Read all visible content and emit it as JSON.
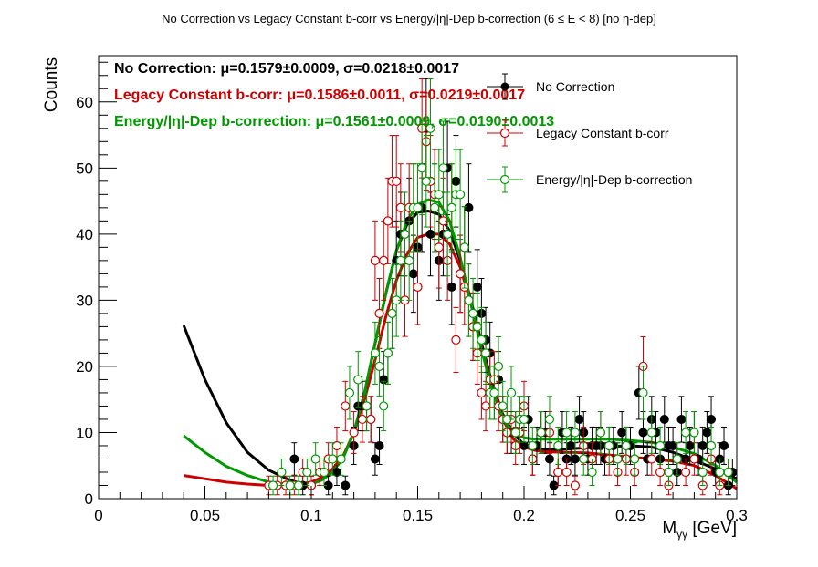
{
  "chart_data": {
    "type": "scatter",
    "title": "No Correction vs Legacy Constant b-corr vs Energy/|η|-Dep b-correction   (6 ≤ E < 8)   [no η-dep]",
    "xlabel": "M",
    "xlabel_sub": "γγ",
    "xlabel_unit": " [GeV]",
    "ylabel": "Counts",
    "xlim": [
      0,
      0.3
    ],
    "ylim": [
      0,
      67
    ],
    "xticks": [
      0,
      0.05,
      0.1,
      0.15,
      0.2,
      0.25,
      0.3
    ],
    "xtick_labels": [
      "0",
      "0.05",
      "0.1",
      "0.15",
      "0.2",
      "0.25",
      "0.3"
    ],
    "yticks": [
      0,
      10,
      20,
      30,
      40,
      50,
      60
    ],
    "ytick_labels": [
      "0",
      "10",
      "20",
      "30",
      "40",
      "50",
      "60"
    ],
    "grid": false,
    "legend_position": "top-right",
    "stats": [
      {
        "label": "No Correction:",
        "value": "μ=0.1579±0.0009, σ=0.0218±0.0017",
        "color": "#000000"
      },
      {
        "label": "Legacy Constant b-corr:",
        "value": "μ=0.1586±0.0011, σ=0.0219±0.0017",
        "color": "#cc0000"
      },
      {
        "label": "Energy/|η|-Dep b-correction:",
        "value": "μ=0.1561±0.0009, σ=0.0190±0.0013",
        "color": "#009900"
      }
    ],
    "series": [
      {
        "name": "No Correction",
        "color": "#000000",
        "marker": "filled-circle",
        "x": [
          0.092,
          0.096,
          0.1,
          0.104,
          0.108,
          0.112,
          0.116,
          0.12,
          0.122,
          0.124,
          0.126,
          0.128,
          0.13,
          0.132,
          0.134,
          0.136,
          0.138,
          0.14,
          0.142,
          0.144,
          0.146,
          0.148,
          0.15,
          0.152,
          0.154,
          0.156,
          0.158,
          0.16,
          0.162,
          0.164,
          0.166,
          0.168,
          0.17,
          0.172,
          0.174,
          0.176,
          0.178,
          0.18,
          0.182,
          0.184,
          0.186,
          0.188,
          0.19,
          0.192,
          0.194,
          0.196,
          0.198,
          0.2,
          0.202,
          0.204,
          0.206,
          0.208,
          0.21,
          0.212,
          0.214,
          0.216,
          0.218,
          0.22,
          0.222,
          0.224,
          0.226,
          0.228,
          0.23,
          0.232,
          0.234,
          0.236,
          0.238,
          0.24,
          0.242,
          0.244,
          0.246,
          0.248,
          0.25,
          0.252,
          0.254,
          0.256,
          0.258,
          0.26,
          0.262,
          0.264,
          0.266,
          0.268,
          0.27,
          0.272,
          0.274,
          0.276,
          0.278,
          0.28,
          0.282,
          0.284,
          0.286,
          0.288,
          0.29,
          0.292,
          0.294,
          0.296,
          0.298
        ],
        "y": [
          6,
          2,
          2,
          4,
          2,
          4,
          2,
          8,
          14,
          14,
          14,
          12,
          6,
          8,
          18,
          22,
          28,
          36,
          40,
          40,
          42,
          34,
          38,
          44,
          56,
          40,
          44,
          36,
          40,
          50,
          32,
          48,
          34,
          38,
          44,
          26,
          32,
          28,
          24,
          22,
          16,
          18,
          12,
          10,
          10,
          10,
          12,
          8,
          12,
          6,
          8,
          10,
          10,
          6,
          2,
          4,
          10,
          6,
          8,
          6,
          12,
          10,
          6,
          8,
          8,
          8,
          6,
          8,
          8,
          6,
          10,
          8,
          8,
          6,
          16,
          10,
          6,
          12,
          10,
          6,
          12,
          8,
          8,
          4,
          12,
          6,
          8,
          10,
          6,
          8,
          10,
          12,
          4,
          6,
          8,
          2,
          4
        ],
        "fit_mu": 0.1579,
        "fit_sigma": 0.0218
      },
      {
        "name": "Legacy Constant b-corr",
        "color": "#cc0000",
        "marker": "open-circle",
        "x": [
          0.08,
          0.084,
          0.088,
          0.092,
          0.096,
          0.1,
          0.104,
          0.108,
          0.112,
          0.116,
          0.12,
          0.124,
          0.128,
          0.13,
          0.132,
          0.134,
          0.136,
          0.138,
          0.14,
          0.142,
          0.144,
          0.146,
          0.148,
          0.15,
          0.152,
          0.154,
          0.156,
          0.158,
          0.16,
          0.162,
          0.164,
          0.166,
          0.168,
          0.17,
          0.172,
          0.174,
          0.176,
          0.178,
          0.18,
          0.182,
          0.184,
          0.186,
          0.188,
          0.19,
          0.192,
          0.194,
          0.196,
          0.198,
          0.2,
          0.204,
          0.208,
          0.212,
          0.216,
          0.22,
          0.224,
          0.228,
          0.232,
          0.236,
          0.24,
          0.244,
          0.248,
          0.252,
          0.256,
          0.26,
          0.264,
          0.268,
          0.272,
          0.276,
          0.28,
          0.284,
          0.288,
          0.292,
          0.296
        ],
        "y": [
          2,
          2,
          2,
          2,
          4,
          2,
          4,
          6,
          8,
          14,
          10,
          12,
          12,
          36,
          28,
          36,
          42,
          48,
          48,
          44,
          30,
          44,
          44,
          32,
          56,
          54,
          48,
          46,
          38,
          42,
          36,
          44,
          24,
          34,
          32,
          30,
          26,
          22,
          16,
          14,
          18,
          18,
          14,
          12,
          10,
          12,
          8,
          10,
          14,
          6,
          10,
          10,
          4,
          4,
          2,
          8,
          6,
          10,
          6,
          4,
          6,
          4,
          20,
          6,
          4,
          2,
          6,
          4,
          6,
          2,
          6,
          2,
          4
        ],
        "fit_mu": 0.1586,
        "fit_sigma": 0.0219
      },
      {
        "name": "Energy/|η|-Dep b-correction",
        "color": "#009900",
        "marker": "open-circle",
        "x": [
          0.082,
          0.086,
          0.09,
          0.094,
          0.098,
          0.102,
          0.106,
          0.11,
          0.114,
          0.118,
          0.122,
          0.126,
          0.13,
          0.132,
          0.134,
          0.136,
          0.138,
          0.14,
          0.142,
          0.144,
          0.146,
          0.148,
          0.15,
          0.152,
          0.154,
          0.156,
          0.158,
          0.16,
          0.162,
          0.164,
          0.166,
          0.168,
          0.17,
          0.172,
          0.174,
          0.176,
          0.178,
          0.18,
          0.182,
          0.184,
          0.186,
          0.188,
          0.19,
          0.192,
          0.194,
          0.196,
          0.198,
          0.2,
          0.204,
          0.208,
          0.212,
          0.216,
          0.22,
          0.224,
          0.228,
          0.232,
          0.236,
          0.24,
          0.244,
          0.248,
          0.252,
          0.256,
          0.26,
          0.264,
          0.268,
          0.272,
          0.276,
          0.28,
          0.284,
          0.288,
          0.292,
          0.296
        ],
        "y": [
          2,
          4,
          2,
          2,
          4,
          6,
          4,
          6,
          6,
          16,
          18,
          14,
          22,
          20,
          14,
          22,
          28,
          30,
          36,
          40,
          36,
          44,
          44,
          50,
          48,
          56,
          44,
          46,
          50,
          40,
          44,
          46,
          46,
          38,
          30,
          28,
          26,
          24,
          22,
          16,
          16,
          20,
          14,
          12,
          16,
          10,
          12,
          12,
          8,
          10,
          12,
          8,
          10,
          10,
          6,
          4,
          10,
          8,
          6,
          8,
          6,
          16,
          10,
          8,
          4,
          6,
          10,
          10,
          4,
          8,
          4,
          4
        ],
        "fit_mu": 0.1561,
        "fit_sigma": 0.019
      }
    ],
    "fit_curves": [
      {
        "series": "No Correction",
        "color": "#000000",
        "x": [
          0.04,
          0.05,
          0.06,
          0.07,
          0.08,
          0.09,
          0.095,
          0.1,
          0.105,
          0.11,
          0.115,
          0.12,
          0.125,
          0.13,
          0.135,
          0.14,
          0.145,
          0.15,
          0.155,
          0.16,
          0.165,
          0.17,
          0.175,
          0.18,
          0.185,
          0.19,
          0.195,
          0.2,
          0.205,
          0.21,
          0.215,
          0.22,
          0.23,
          0.24,
          0.25,
          0.26,
          0.27,
          0.28,
          0.29,
          0.3
        ],
        "y": [
          26.2,
          18.0,
          11.5,
          7.0,
          4.3,
          2.8,
          2.3,
          2.4,
          3.2,
          4.4,
          6.3,
          10.0,
          16.0,
          23.5,
          31.0,
          37.5,
          41.5,
          43.3,
          43.5,
          43.0,
          40.5,
          36.0,
          30.0,
          23.5,
          17.5,
          12.8,
          9.8,
          8.2,
          7.6,
          7.4,
          7.4,
          7.5,
          7.7,
          7.9,
          8.0,
          7.8,
          7.0,
          5.8,
          4.5,
          3.0
        ]
      },
      {
        "series": "Legacy Constant b-corr",
        "color": "#cc0000",
        "x": [
          0.04,
          0.05,
          0.06,
          0.07,
          0.08,
          0.09,
          0.1,
          0.105,
          0.11,
          0.115,
          0.12,
          0.125,
          0.13,
          0.135,
          0.14,
          0.145,
          0.15,
          0.155,
          0.16,
          0.165,
          0.17,
          0.175,
          0.18,
          0.185,
          0.19,
          0.195,
          0.2,
          0.205,
          0.21,
          0.22,
          0.23,
          0.24,
          0.25,
          0.26,
          0.27,
          0.28,
          0.29,
          0.3
        ],
        "y": [
          3.5,
          3.0,
          2.5,
          2.2,
          2.0,
          2.0,
          2.5,
          3.2,
          4.5,
          6.5,
          10.0,
          15.0,
          21.0,
          27.5,
          33.0,
          37.0,
          39.5,
          40.0,
          40.0,
          38.5,
          35.0,
          29.5,
          23.0,
          17.0,
          12.0,
          9.0,
          7.8,
          7.3,
          7.1,
          7.0,
          6.9,
          6.6,
          6.3,
          6.0,
          5.7,
          5.0,
          3.5,
          1.5
        ]
      },
      {
        "series": "Energy/|η|-Dep b-correction",
        "color": "#009900",
        "x": [
          0.04,
          0.05,
          0.06,
          0.07,
          0.08,
          0.09,
          0.1,
          0.105,
          0.11,
          0.115,
          0.12,
          0.125,
          0.13,
          0.135,
          0.14,
          0.145,
          0.15,
          0.155,
          0.16,
          0.165,
          0.17,
          0.175,
          0.18,
          0.185,
          0.19,
          0.195,
          0.2,
          0.205,
          0.21,
          0.22,
          0.23,
          0.24,
          0.25,
          0.26,
          0.27,
          0.28,
          0.29,
          0.3
        ],
        "y": [
          9.5,
          7.0,
          4.9,
          3.5,
          2.5,
          2.0,
          2.2,
          2.8,
          4.0,
          6.2,
          10.0,
          16.0,
          23.5,
          31.0,
          37.5,
          42.0,
          44.5,
          45.2,
          44.8,
          42.0,
          36.5,
          29.5,
          22.5,
          16.5,
          12.0,
          10.0,
          9.2,
          9.0,
          9.0,
          9.0,
          9.0,
          9.0,
          8.8,
          8.5,
          7.8,
          6.8,
          5.0,
          2.5
        ]
      }
    ]
  }
}
